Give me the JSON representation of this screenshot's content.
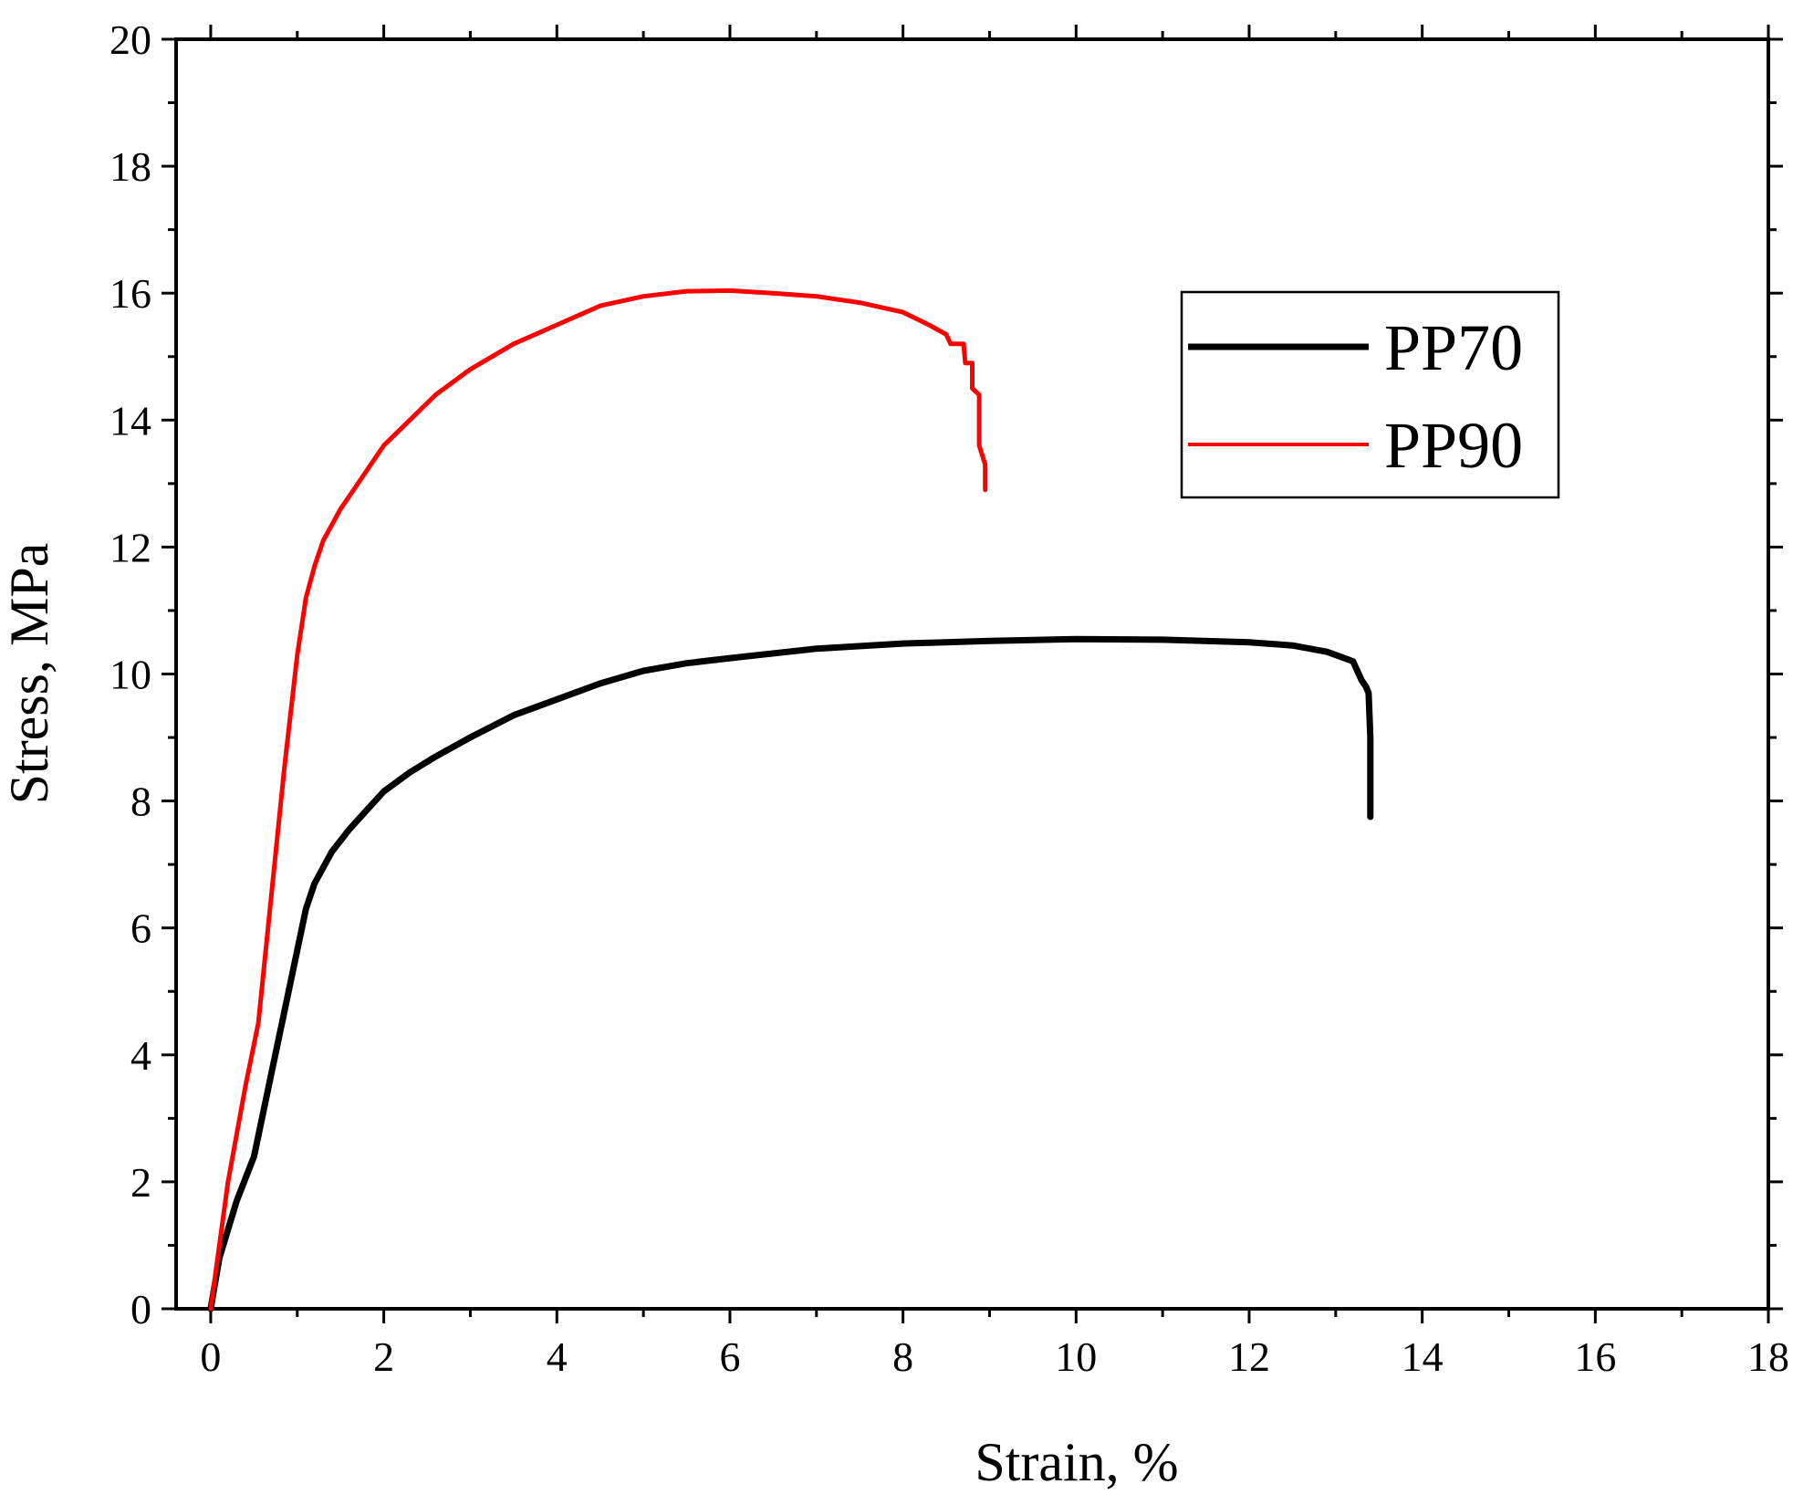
{
  "chart_data": {
    "type": "line",
    "title": "",
    "xlabel": "Strain, %",
    "ylabel": "Stress, MPa",
    "xlim": [
      -0.4,
      18
    ],
    "ylim": [
      0,
      20
    ],
    "xticks": [
      0,
      2,
      4,
      6,
      8,
      10,
      12,
      14,
      16,
      18
    ],
    "yticks": [
      0,
      2,
      4,
      6,
      8,
      10,
      12,
      14,
      16,
      18,
      20
    ],
    "grid": false,
    "legend_position": "top-right",
    "series": [
      {
        "name": "PP70",
        "color": "#000000",
        "points": [
          [
            0,
            0
          ],
          [
            0.1,
            0.8
          ],
          [
            0.3,
            1.7
          ],
          [
            0.5,
            2.4
          ],
          [
            0.7,
            3.7
          ],
          [
            0.9,
            5.0
          ],
          [
            1.1,
            6.3
          ],
          [
            1.2,
            6.7
          ],
          [
            1.4,
            7.2
          ],
          [
            1.6,
            7.55
          ],
          [
            1.8,
            7.85
          ],
          [
            2.0,
            8.15
          ],
          [
            2.3,
            8.45
          ],
          [
            2.6,
            8.7
          ],
          [
            3.0,
            9.0
          ],
          [
            3.5,
            9.35
          ],
          [
            4.0,
            9.6
          ],
          [
            4.5,
            9.85
          ],
          [
            5.0,
            10.05
          ],
          [
            5.5,
            10.17
          ],
          [
            6.0,
            10.25
          ],
          [
            7.0,
            10.4
          ],
          [
            8.0,
            10.48
          ],
          [
            9.0,
            10.52
          ],
          [
            10.0,
            10.55
          ],
          [
            11.0,
            10.54
          ],
          [
            12.0,
            10.5
          ],
          [
            12.5,
            10.45
          ],
          [
            12.9,
            10.35
          ],
          [
            13.1,
            10.25
          ],
          [
            13.2,
            10.2
          ],
          [
            13.25,
            10.05
          ],
          [
            13.3,
            9.9
          ],
          [
            13.35,
            9.8
          ],
          [
            13.38,
            9.7
          ],
          [
            13.4,
            9.0
          ],
          [
            13.4,
            8.2
          ],
          [
            13.4,
            7.75
          ]
        ]
      },
      {
        "name": "PP90",
        "color": "#ff0000",
        "points": [
          [
            0,
            0
          ],
          [
            0.2,
            2.0
          ],
          [
            0.4,
            3.5
          ],
          [
            0.55,
            4.5
          ],
          [
            0.7,
            6.5
          ],
          [
            0.85,
            8.5
          ],
          [
            1.0,
            10.3
          ],
          [
            1.1,
            11.2
          ],
          [
            1.2,
            11.7
          ],
          [
            1.3,
            12.1
          ],
          [
            1.5,
            12.6
          ],
          [
            1.7,
            13.0
          ],
          [
            2.0,
            13.6
          ],
          [
            2.3,
            14.0
          ],
          [
            2.6,
            14.4
          ],
          [
            3.0,
            14.8
          ],
          [
            3.5,
            15.2
          ],
          [
            4.0,
            15.5
          ],
          [
            4.5,
            15.8
          ],
          [
            5.0,
            15.95
          ],
          [
            5.5,
            16.03
          ],
          [
            6.0,
            16.04
          ],
          [
            6.5,
            16.0
          ],
          [
            7.0,
            15.95
          ],
          [
            7.5,
            15.85
          ],
          [
            8.0,
            15.7
          ],
          [
            8.3,
            15.5
          ],
          [
            8.5,
            15.35
          ],
          [
            8.55,
            15.2
          ],
          [
            8.7,
            15.2
          ],
          [
            8.72,
            14.9
          ],
          [
            8.8,
            14.9
          ],
          [
            8.8,
            14.5
          ],
          [
            8.88,
            14.4
          ],
          [
            8.88,
            13.6
          ],
          [
            8.95,
            13.3
          ],
          [
            8.95,
            12.9
          ]
        ]
      }
    ]
  }
}
